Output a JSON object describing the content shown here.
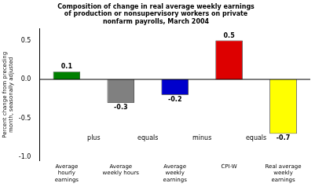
{
  "chart_data": {
    "type": "bar",
    "title": "Composition of change in real average weekly earnings\nof production or nonsupervisory workers on private\nnonfarm payrolls, March 2004",
    "categories": [
      "Average\nhourly\nearnings",
      "Average\nweekly hours",
      "Average\nweekly\nearnings",
      "CPI-W",
      "Real average\nweekly\nearnings"
    ],
    "values": [
      0.1,
      -0.3,
      -0.2,
      0.5,
      -0.7
    ],
    "colors": [
      "#008000",
      "#808080",
      "#0000cc",
      "#dd0000",
      "#ffff00"
    ],
    "data_labels": true,
    "annotations": [
      "plus",
      "equals",
      "minus",
      "equals"
    ],
    "ylabel": "Percent change from preceding\nmonth, seasonally adjusted",
    "ylim": [
      -1.05,
      0.65
    ],
    "yticks": [
      {
        "value": -1.0,
        "label": "-1.0"
      },
      -0.5,
      {
        "value": 0.0,
        "label": "0.0"
      },
      0.5
    ],
    "grid": false
  }
}
